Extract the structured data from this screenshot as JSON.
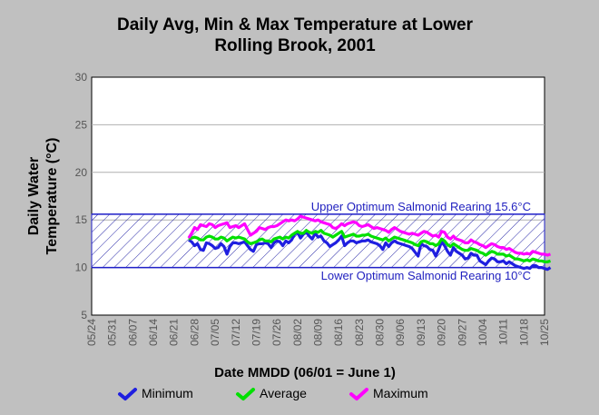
{
  "chart_data": {
    "type": "line",
    "title_line1": "Daily Avg, Min & Max Temperature at Lower",
    "title_line2": "Rolling Brook, 2001",
    "xlabel": "Date MMDD (06/01 = June 1)",
    "ylabel_line1": "Daily Water",
    "ylabel_line2": "Temperature (°C)",
    "xlim": [
      "05/24",
      "10/25"
    ],
    "ylim": [
      5,
      30
    ],
    "y_ticks": [
      "5",
      "10",
      "15",
      "20",
      "25",
      "30"
    ],
    "x_ticks": [
      "05/24",
      "05/31",
      "06/07",
      "06/14",
      "06/21",
      "06/28",
      "07/05",
      "07/12",
      "07/19",
      "07/26",
      "08/02",
      "08/09",
      "08/16",
      "08/23",
      "08/30",
      "09/06",
      "09/13",
      "09/20",
      "09/27",
      "10/04",
      "10/11",
      "10/18",
      "10/25"
    ],
    "optimum_band": {
      "upper": 15.6,
      "lower": 10,
      "upper_label": "Upper Optimum Salmonid Rearing 15.6°C",
      "lower_label": "Lower Optimum Salmonid Rearing 10°C"
    },
    "x_start": "06/26",
    "series": [
      {
        "name": "Minimum",
        "color": "#1f1fe0",
        "values": [
          12.9,
          12.7,
          12.3,
          12.5,
          11.9,
          11.8,
          12.6,
          12.5,
          12.3,
          12.0,
          12.1,
          12.5,
          12.2,
          11.4,
          12.2,
          12.6,
          12.6,
          12.5,
          12.6,
          12.7,
          12.3,
          11.9,
          11.7,
          12.4,
          12.5,
          12.5,
          12.6,
          12.5,
          12.1,
          12.6,
          12.8,
          12.7,
          12.3,
          12.8,
          12.6,
          12.9,
          13.5,
          13.7,
          13.1,
          13.5,
          13.7,
          13.3,
          13.0,
          13.6,
          13.2,
          13.3,
          12.8,
          12.6,
          12.2,
          12.4,
          12.6,
          12.9,
          13.3,
          12.3,
          12.6,
          12.8,
          12.8,
          12.6,
          12.7,
          12.8,
          12.8,
          12.9,
          12.7,
          12.6,
          12.5,
          12.3,
          11.9,
          12.6,
          12.2,
          12.6,
          12.8,
          12.6,
          12.5,
          12.4,
          12.3,
          12.2,
          12.0,
          11.6,
          11.2,
          12.5,
          12.3,
          12.2,
          11.9,
          11.8,
          11.2,
          11.9,
          12.7,
          12.3,
          11.7,
          11.3,
          12.1,
          11.7,
          11.5,
          11.3,
          10.9,
          11.0,
          11.5,
          11.3,
          11.3,
          10.7,
          10.5,
          10.3,
          10.7,
          11.0,
          10.9,
          10.6,
          10.6,
          10.7,
          10.4,
          10.6,
          10.4,
          10.2,
          10.1,
          10.0,
          9.9,
          10.0,
          9.9,
          10.2,
          10.2,
          10.0,
          10.0,
          9.9,
          9.8,
          10.0
        ]
      },
      {
        "name": "Average",
        "color": "#00e000",
        "values": [
          13.0,
          13.1,
          13.2,
          13.1,
          12.9,
          12.9,
          13.2,
          13.3,
          13.2,
          13.0,
          13.0,
          13.2,
          13.1,
          12.8,
          13.0,
          13.2,
          13.1,
          13.2,
          13.1,
          13.0,
          12.7,
          12.5,
          12.6,
          12.7,
          12.9,
          13.0,
          12.8,
          12.8,
          12.7,
          13.0,
          13.1,
          13.2,
          13.0,
          13.2,
          13.1,
          13.4,
          13.6,
          13.8,
          13.6,
          13.6,
          13.9,
          13.7,
          13.6,
          13.8,
          13.7,
          13.9,
          13.6,
          13.5,
          13.4,
          13.2,
          13.4,
          13.6,
          13.8,
          13.2,
          13.3,
          13.4,
          13.5,
          13.3,
          13.3,
          13.4,
          13.4,
          13.5,
          13.3,
          13.2,
          13.1,
          13.0,
          12.9,
          13.1,
          12.8,
          13.0,
          13.2,
          13.1,
          13.0,
          12.9,
          12.8,
          12.7,
          12.6,
          12.4,
          12.3,
          12.7,
          12.8,
          12.7,
          12.5,
          12.5,
          12.3,
          12.5,
          13.0,
          12.8,
          12.4,
          12.2,
          12.5,
          12.3,
          12.1,
          11.9,
          11.8,
          11.8,
          12.0,
          11.9,
          11.8,
          11.6,
          11.5,
          11.3,
          11.5,
          11.7,
          11.6,
          11.4,
          11.4,
          11.4,
          11.2,
          11.3,
          11.1,
          10.9,
          10.9,
          10.8,
          10.7,
          10.8,
          10.7,
          10.9,
          10.8,
          10.7,
          10.7,
          10.6,
          10.6,
          10.7
        ]
      },
      {
        "name": "Maximum",
        "color": "#ff00ff",
        "values": [
          13.1,
          13.6,
          14.2,
          14.0,
          14.5,
          14.4,
          14.3,
          14.6,
          14.5,
          14.2,
          14.4,
          14.5,
          14.6,
          14.7,
          14.2,
          14.3,
          14.4,
          14.2,
          14.4,
          14.6,
          14.0,
          13.4,
          13.6,
          13.8,
          14.2,
          14.1,
          14.0,
          14.2,
          14.3,
          14.3,
          14.4,
          14.6,
          14.8,
          15.0,
          14.9,
          15.0,
          14.9,
          15.1,
          15.4,
          15.3,
          15.2,
          15.1,
          15.0,
          14.9,
          15.0,
          14.8,
          14.7,
          14.6,
          14.5,
          14.2,
          14.1,
          14.3,
          14.6,
          14.4,
          14.6,
          14.7,
          14.8,
          14.7,
          14.4,
          14.3,
          14.4,
          14.5,
          14.3,
          14.1,
          14.2,
          14.1,
          14.0,
          13.9,
          13.7,
          14.0,
          14.2,
          14.0,
          13.8,
          13.7,
          13.6,
          13.5,
          13.6,
          13.5,
          13.4,
          13.6,
          13.8,
          13.7,
          13.5,
          13.3,
          13.4,
          13.2,
          13.8,
          13.7,
          13.2,
          13.0,
          13.3,
          13.0,
          12.9,
          12.8,
          12.6,
          12.6,
          12.9,
          12.7,
          12.6,
          12.4,
          12.3,
          12.1,
          12.3,
          12.5,
          12.4,
          12.2,
          12.1,
          12.1,
          11.9,
          12.0,
          11.8,
          11.6,
          11.5,
          11.5,
          11.4,
          11.5,
          11.4,
          11.7,
          11.6,
          11.5,
          11.4,
          11.4,
          11.3,
          11.4
        ]
      }
    ],
    "legend_position": "bottom"
  }
}
